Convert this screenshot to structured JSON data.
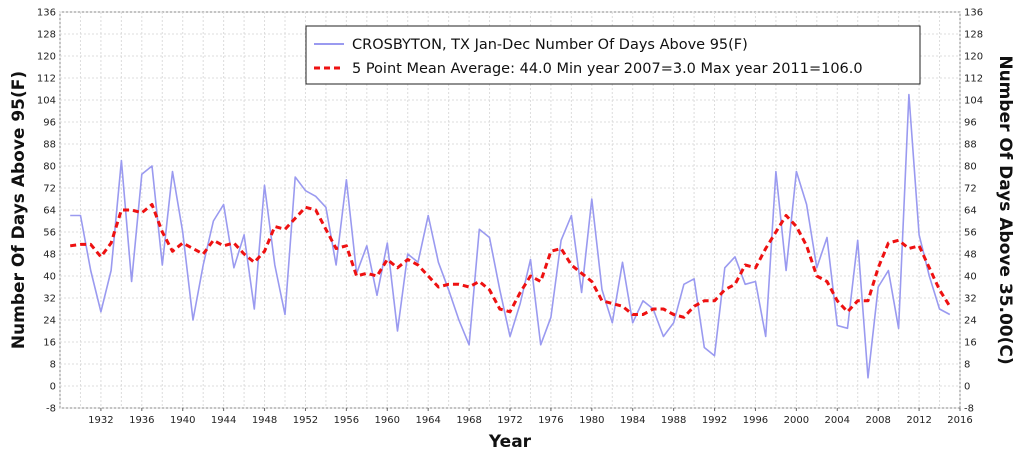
{
  "chart_data": {
    "type": "line",
    "title": "",
    "xlabel": "Year",
    "ylabel": "Number Of Days Above 95(F)",
    "ylabel_right": "Number Of Days Above 35.00(C)",
    "xlim": [
      1928,
      2016
    ],
    "ylim": [
      -8,
      136
    ],
    "x_ticks": [
      1932,
      1936,
      1940,
      1944,
      1948,
      1952,
      1956,
      1960,
      1964,
      1968,
      1972,
      1976,
      1980,
      1984,
      1988,
      1992,
      1996,
      2000,
      2004,
      2008,
      2012,
      2016
    ],
    "y_ticks": [
      -8,
      0,
      8,
      16,
      24,
      32,
      40,
      48,
      56,
      64,
      72,
      80,
      88,
      96,
      104,
      112,
      120,
      128,
      136
    ],
    "grid": true,
    "legend_position": "top-right",
    "x": [
      1929,
      1930,
      1931,
      1932,
      1933,
      1934,
      1935,
      1936,
      1937,
      1938,
      1939,
      1940,
      1941,
      1942,
      1943,
      1944,
      1945,
      1946,
      1947,
      1948,
      1949,
      1950,
      1951,
      1952,
      1953,
      1954,
      1955,
      1956,
      1957,
      1958,
      1959,
      1960,
      1961,
      1962,
      1963,
      1964,
      1965,
      1966,
      1967,
      1968,
      1969,
      1970,
      1971,
      1972,
      1973,
      1974,
      1975,
      1976,
      1977,
      1978,
      1979,
      1980,
      1981,
      1982,
      1983,
      1984,
      1985,
      1986,
      1987,
      1988,
      1989,
      1990,
      1991,
      1992,
      1993,
      1994,
      1995,
      1996,
      1997,
      1998,
      1999,
      2000,
      2001,
      2002,
      2003,
      2004,
      2005,
      2006,
      2007,
      2008,
      2009,
      2010,
      2011,
      2012,
      2013,
      2014,
      2015
    ],
    "series": [
      {
        "name": "CROSBYTON, TX  Jan-Dec  Number Of Days Above 95(F)",
        "style": "line",
        "color": "#9a9af0",
        "values": [
          62,
          62,
          42,
          27,
          42,
          82,
          38,
          77,
          80,
          44,
          78,
          56,
          24,
          44,
          60,
          66,
          43,
          55,
          28,
          73,
          44,
          26,
          76,
          71,
          69,
          65,
          44,
          75,
          41,
          51,
          33,
          52,
          20,
          48,
          45,
          62,
          45,
          35,
          24,
          15,
          57,
          54,
          35,
          18,
          30,
          46,
          15,
          25,
          53,
          62,
          34,
          68,
          35,
          23,
          45,
          23,
          31,
          28,
          18,
          23,
          37,
          39,
          14,
          11,
          43,
          47,
          37,
          38,
          18,
          78,
          42,
          78,
          66,
          43,
          54,
          22,
          21,
          53,
          3,
          36,
          42,
          21,
          106,
          55,
          40,
          28,
          26
        ]
      },
      {
        "name": "5 Point Mean  Average: 44.0  Min year 2007=3.0  Max year 2011=106.0",
        "style": "dashed",
        "color": "#ee1111",
        "values": [
          51,
          51.5,
          51.5,
          47,
          52,
          64,
          64,
          63,
          66,
          56,
          49,
          52,
          50,
          48,
          53,
          51,
          52,
          48,
          45,
          49,
          58,
          57,
          61,
          65,
          64,
          57,
          50,
          51,
          40,
          41,
          40,
          46,
          43,
          46,
          44,
          40,
          36,
          37,
          37,
          36,
          38,
          35,
          28,
          27,
          34,
          40,
          38,
          49,
          50,
          44,
          41,
          38,
          31,
          30,
          29,
          26,
          26,
          28,
          28,
          26,
          25,
          29,
          31,
          31,
          35,
          37,
          44,
          43,
          50,
          56,
          62,
          58,
          51,
          40,
          38,
          31,
          27,
          31,
          31,
          43,
          52,
          53,
          50,
          51,
          43,
          35,
          29
        ]
      }
    ]
  }
}
